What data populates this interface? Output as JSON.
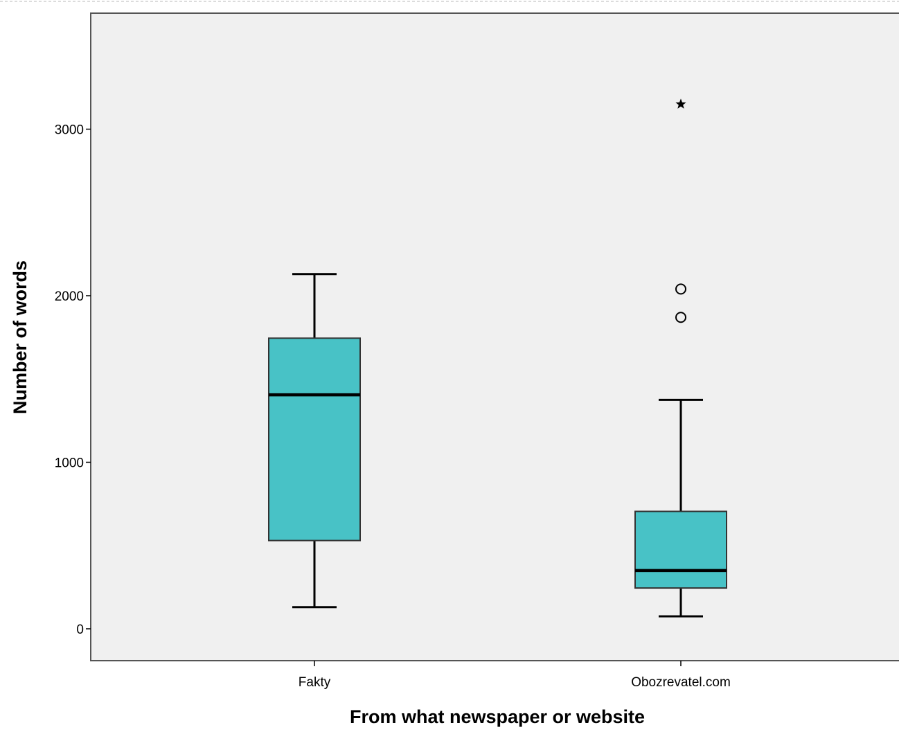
{
  "chart_data": {
    "type": "boxplot",
    "title": "",
    "xlabel": "From what newspaper or website",
    "ylabel": "Number of words",
    "ylim": [
      -190,
      3700
    ],
    "yticks": [
      0,
      1000,
      2000,
      3000
    ],
    "grid": false,
    "categories": [
      "Fakty",
      "Obozrevatel.com"
    ],
    "boxes": [
      {
        "category": "Fakty",
        "whisker_low": 130,
        "q1": 530,
        "median": 1405,
        "q3": 1745,
        "whisker_high": 2130,
        "outliers": [],
        "extremes": []
      },
      {
        "category": "Obozrevatel.com",
        "whisker_low": 75,
        "q1": 245,
        "median": 350,
        "q3": 705,
        "whisker_high": 1375,
        "outliers": [
          1870,
          2040
        ],
        "extremes": [
          3150
        ]
      }
    ],
    "colors": {
      "box_fill": "#48c2c6",
      "plot_background": "#f0f0f0",
      "stroke": "#000000"
    }
  }
}
